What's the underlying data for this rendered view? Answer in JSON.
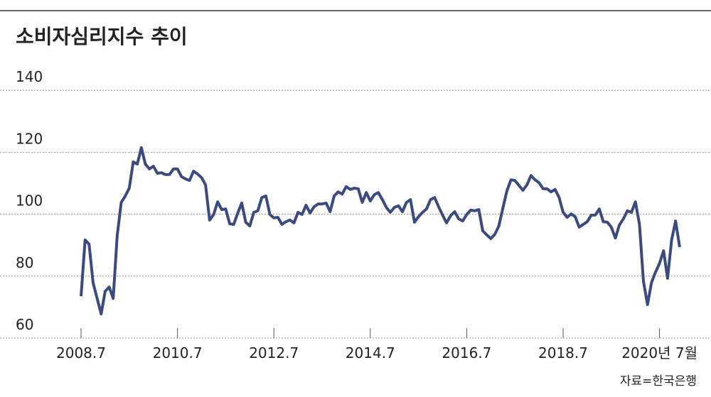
{
  "chart_data": {
    "type": "line",
    "title": "소비자심리지수 추이",
    "source": "자료=한국은행",
    "categories": [
      "2008.7",
      null,
      null,
      null,
      null,
      null,
      null,
      null,
      null,
      null,
      null,
      null,
      null,
      null,
      null,
      null,
      null,
      null,
      null,
      null,
      null,
      null,
      null,
      null,
      "2010.7",
      null,
      null,
      null,
      null,
      null,
      null,
      null,
      null,
      null,
      null,
      null,
      null,
      null,
      null,
      null,
      null,
      null,
      null,
      null,
      null,
      null,
      null,
      null,
      "2012.7",
      null,
      null,
      null,
      null,
      null,
      null,
      null,
      null,
      null,
      null,
      null,
      null,
      null,
      null,
      null,
      null,
      null,
      null,
      null,
      null,
      null,
      null,
      null,
      "2014.7",
      null,
      null,
      null,
      null,
      null,
      null,
      null,
      null,
      null,
      null,
      null,
      null,
      null,
      null,
      null,
      null,
      null,
      null,
      null,
      null,
      null,
      null,
      null,
      "2016.7",
      null,
      null,
      null,
      null,
      null,
      null,
      null,
      null,
      null,
      null,
      null,
      null,
      null,
      null,
      null,
      null,
      null,
      null,
      null,
      null,
      null,
      null,
      null,
      "2018.7",
      null,
      null,
      null,
      null,
      null,
      null,
      null,
      null,
      null,
      null,
      null,
      null,
      null,
      null,
      null,
      null,
      null,
      null,
      null,
      null,
      null,
      null,
      null,
      "2020년 7월",
      null,
      null,
      null,
      null,
      null
    ],
    "values": [
      73.5,
      91.7,
      90.3,
      77.9,
      72.8,
      67.8,
      75.1,
      76.5,
      72.8,
      93,
      103.8,
      105.9,
      108.4,
      116.9,
      116.2,
      121.5,
      116.2,
      114.6,
      115.5,
      113.2,
      113.4,
      112.8,
      112.8,
      114.6,
      114.6,
      112.1,
      111.4,
      110.9,
      113.9,
      113,
      111.8,
      109.5,
      98.1,
      99.9,
      104,
      101.5,
      101.7,
      96.9,
      96.7,
      100.4,
      103.6,
      97.4,
      96.2,
      100.6,
      101.1,
      105.4,
      105.9,
      99.9,
      98.8,
      99,
      96.7,
      97.6,
      98.1,
      97.2,
      100.6,
      99.9,
      102.9,
      100.4,
      102.4,
      103.3,
      103.3,
      103.6,
      100.8,
      105.9,
      107.2,
      106.5,
      108.9,
      108,
      108.4,
      108.2,
      103.8,
      107,
      104.3,
      106.3,
      107,
      104.7,
      102.2,
      100.6,
      102.2,
      102.7,
      100.8,
      103.8,
      104.7,
      97.4,
      99.2,
      100.6,
      101.7,
      104.7,
      105.4,
      102.4,
      99.7,
      97.2,
      99.5,
      100.8,
      98.5,
      97.8,
      99.9,
      101.3,
      101.1,
      101.5,
      94.6,
      93.3,
      92.1,
      93.5,
      96.2,
      102,
      107.5,
      111.1,
      110.9,
      109.3,
      107.7,
      109.5,
      112.5,
      111.1,
      110.2,
      108.2,
      108.2,
      107.2,
      108,
      105.4,
      100.6,
      99,
      100.1,
      99.2,
      95.8,
      96.7,
      97.6,
      99.7,
      99.7,
      101.7,
      97.6,
      97.4,
      95.8,
      92.3,
      96.5,
      98.5,
      101.1,
      100.6,
      104,
      96.7,
      78.3,
      70.8,
      77.9,
      81.3,
      84.1,
      88.2,
      79.3,
      91.7,
      97.8,
      89.4
    ],
    "color": "#3b4a7f",
    "ylim": [
      60,
      140
    ],
    "yticks": [
      60,
      80,
      100,
      120,
      140
    ],
    "grid": true
  }
}
